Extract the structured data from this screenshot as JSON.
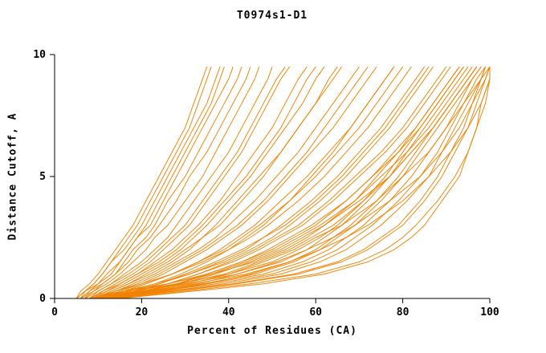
{
  "title": "T0974s1-D1",
  "chart_data": {
    "type": "line",
    "title": "T0974s1-D1",
    "xlabel": "Percent of Residues (CA)",
    "ylabel": "Distance Cutoff, A",
    "xlim": [
      0,
      100
    ],
    "ylim": [
      0,
      10
    ],
    "xticks": [
      0,
      20,
      40,
      60,
      80,
      100
    ],
    "yticks": [
      0,
      5,
      10
    ],
    "grid": false,
    "legend": "none",
    "line_color": "#f08200",
    "axis_color": "#000000",
    "cutoffs": [
      0,
      0.3,
      0.6,
      1,
      1.5,
      2,
      2.5,
      3,
      4,
      5,
      6,
      7,
      8,
      9,
      9.5
    ],
    "series_x_at_cutoffs": [
      [
        5,
        7,
        9,
        11,
        13,
        15,
        17,
        19,
        22,
        25,
        28,
        31,
        33,
        35,
        36
      ],
      [
        6,
        8,
        10,
        12,
        15,
        17,
        19,
        21,
        24,
        27,
        30,
        33,
        36,
        38,
        39
      ],
      [
        6,
        9,
        11,
        14,
        16,
        18,
        21,
        23,
        26,
        30,
        33,
        36,
        39,
        42,
        43
      ],
      [
        7,
        9,
        12,
        15,
        18,
        21,
        23,
        26,
        30,
        34,
        37,
        40,
        43,
        46,
        47
      ],
      [
        7,
        10,
        13,
        16,
        20,
        23,
        26,
        28,
        32,
        36,
        40,
        43,
        46,
        49,
        50
      ],
      [
        8,
        11,
        14,
        18,
        22,
        25,
        28,
        31,
        35,
        39,
        43,
        46,
        49,
        52,
        54
      ],
      [
        8,
        12,
        15,
        19,
        23,
        27,
        30,
        33,
        38,
        42,
        46,
        50,
        53,
        56,
        58
      ],
      [
        9,
        12,
        16,
        20,
        25,
        29,
        32,
        35,
        40,
        45,
        49,
        53,
        57,
        60,
        62
      ],
      [
        9,
        13,
        17,
        22,
        27,
        31,
        34,
        38,
        43,
        48,
        52,
        56,
        60,
        64,
        66
      ],
      [
        10,
        14,
        18,
        23,
        28,
        33,
        37,
        40,
        46,
        51,
        56,
        60,
        64,
        68,
        70
      ],
      [
        10,
        15,
        20,
        25,
        30,
        35,
        39,
        43,
        49,
        54,
        59,
        64,
        68,
        72,
        74
      ],
      [
        11,
        16,
        21,
        27,
        33,
        38,
        42,
        46,
        52,
        58,
        63,
        68,
        72,
        76,
        78
      ],
      [
        11,
        17,
        23,
        29,
        35,
        40,
        45,
        49,
        56,
        62,
        67,
        72,
        76,
        80,
        82
      ],
      [
        12,
        18,
        24,
        31,
        38,
        44,
        48,
        53,
        60,
        66,
        71,
        76,
        80,
        84,
        86
      ],
      [
        12,
        19,
        26,
        33,
        40,
        46,
        51,
        56,
        63,
        69,
        75,
        80,
        84,
        88,
        90
      ],
      [
        13,
        20,
        28,
        35,
        43,
        49,
        54,
        59,
        67,
        73,
        79,
        84,
        88,
        92,
        94
      ],
      [
        13,
        21,
        29,
        37,
        45,
        52,
        57,
        62,
        70,
        77,
        82,
        87,
        91,
        95,
        97
      ],
      [
        14,
        22,
        31,
        40,
        48,
        55,
        60,
        66,
        74,
        80,
        86,
        90,
        94,
        98,
        99
      ],
      [
        14,
        24,
        33,
        42,
        51,
        58,
        64,
        69,
        77,
        84,
        89,
        93,
        96,
        99,
        100
      ],
      [
        15,
        25,
        35,
        45,
        54,
        61,
        67,
        72,
        80,
        86,
        91,
        95,
        98,
        100,
        100
      ],
      [
        10,
        20,
        30,
        42,
        52,
        58,
        62,
        66,
        72,
        77,
        81,
        85,
        89,
        93,
        95
      ],
      [
        11,
        22,
        34,
        46,
        55,
        61,
        65,
        69,
        75,
        80,
        84,
        88,
        92,
        96,
        98
      ],
      [
        12,
        24,
        37,
        50,
        59,
        65,
        69,
        73,
        79,
        84,
        88,
        91,
        94,
        97,
        99
      ],
      [
        9,
        18,
        28,
        40,
        50,
        56,
        61,
        65,
        71,
        76,
        80,
        84,
        88,
        92,
        94
      ],
      [
        10,
        21,
        32,
        44,
        54,
        60,
        64,
        68,
        74,
        79,
        83,
        87,
        91,
        95,
        97
      ],
      [
        13,
        26,
        39,
        52,
        61,
        67,
        71,
        75,
        81,
        86,
        89,
        92,
        95,
        98,
        100
      ],
      [
        8,
        16,
        26,
        36,
        46,
        53,
        58,
        62,
        69,
        74,
        79,
        83,
        87,
        91,
        93
      ],
      [
        12,
        23,
        35,
        48,
        57,
        63,
        67,
        71,
        77,
        82,
        86,
        90,
        93,
        96,
        98
      ],
      [
        14,
        28,
        42,
        56,
        66,
        72,
        76,
        80,
        85,
        89,
        92,
        95,
        97,
        99,
        100
      ],
      [
        15,
        30,
        45,
        60,
        70,
        76,
        80,
        83,
        88,
        92,
        95,
        97,
        98,
        100,
        100
      ],
      [
        13,
        27,
        41,
        55,
        65,
        71,
        75,
        79,
        84,
        88,
        91,
        94,
        96,
        98,
        99
      ],
      [
        15,
        32,
        48,
        62,
        72,
        78,
        82,
        85,
        89,
        93,
        95,
        97,
        99,
        100,
        100
      ],
      [
        5,
        6,
        8,
        10,
        12,
        14,
        16,
        18,
        21,
        24,
        27,
        30,
        32,
        34,
        35
      ],
      [
        6,
        7,
        9,
        11,
        13,
        16,
        18,
        20,
        23,
        26,
        29,
        32,
        35,
        37,
        38
      ],
      [
        5,
        7,
        10,
        13,
        15,
        17,
        19,
        22,
        25,
        28,
        31,
        34,
        37,
        40,
        41
      ],
      [
        7,
        8,
        11,
        14,
        17,
        19,
        22,
        24,
        28,
        31,
        35,
        38,
        41,
        44,
        45
      ],
      [
        8,
        10,
        13,
        17,
        21,
        24,
        27,
        30,
        34,
        38,
        42,
        45,
        48,
        51,
        53
      ],
      [
        9,
        11,
        15,
        19,
        24,
        28,
        31,
        34,
        39,
        44,
        48,
        52,
        55,
        58,
        60
      ],
      [
        10,
        13,
        17,
        21,
        26,
        30,
        34,
        37,
        42,
        47,
        52,
        56,
        60,
        63,
        65
      ],
      [
        11,
        14,
        19,
        24,
        29,
        34,
        38,
        42,
        48,
        53,
        58,
        62,
        66,
        70,
        72
      ],
      [
        12,
        16,
        21,
        27,
        33,
        39,
        43,
        47,
        54,
        60,
        65,
        70,
        74,
        78,
        80
      ],
      [
        13,
        18,
        24,
        30,
        37,
        43,
        48,
        52,
        59,
        65,
        70,
        75,
        79,
        83,
        85
      ],
      [
        14,
        19,
        26,
        33,
        41,
        47,
        52,
        57,
        64,
        70,
        76,
        81,
        85,
        89,
        91
      ],
      [
        15,
        21,
        28,
        36,
        44,
        51,
        56,
        61,
        69,
        75,
        81,
        86,
        90,
        94,
        96
      ],
      [
        9,
        14,
        20,
        27,
        34,
        40,
        44,
        48,
        54,
        59,
        64,
        68,
        72,
        76,
        78
      ],
      [
        10,
        16,
        23,
        31,
        39,
        45,
        50,
        54,
        61,
        67,
        72,
        77,
        81,
        85,
        87
      ],
      [
        11,
        18,
        26,
        35,
        43,
        50,
        55,
        60,
        67,
        73,
        78,
        83,
        87,
        91,
        93
      ],
      [
        12,
        20,
        29,
        39,
        47,
        54,
        59,
        64,
        71,
        77,
        82,
        87,
        91,
        95,
        97
      ]
    ]
  }
}
